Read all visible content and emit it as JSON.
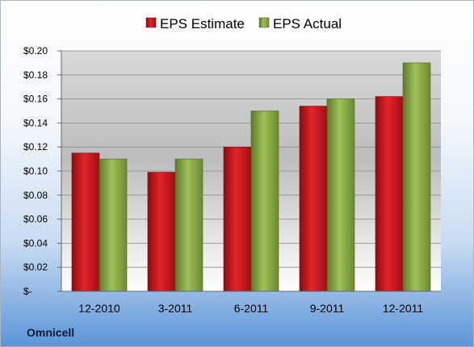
{
  "company": "Omnicell",
  "colors": {
    "estimate": "#d0141c",
    "actual": "#8fb04a"
  },
  "chart_data": {
    "type": "bar",
    "title": "",
    "xlabel": "",
    "ylabel": "",
    "categories": [
      "12-2010",
      "3-2011",
      "6-2011",
      "9-2011",
      "12-2011"
    ],
    "series": [
      {
        "name": "EPS Estimate",
        "values": [
          0.115,
          0.099,
          0.12,
          0.154,
          0.162
        ]
      },
      {
        "name": "EPS Actual",
        "values": [
          0.11,
          0.11,
          0.15,
          0.16,
          0.19
        ]
      }
    ],
    "ylim": [
      0,
      0.2
    ],
    "yticks": [
      0,
      0.02,
      0.04,
      0.06,
      0.08,
      0.1,
      0.12,
      0.14,
      0.16,
      0.18,
      0.2
    ],
    "ytick_labels": [
      "$-",
      "$0.02",
      "$0.04",
      "$0.06",
      "$0.08",
      "$0.10",
      "$0.12",
      "$0.14",
      "$0.16",
      "$0.18",
      "$0.20"
    ],
    "grid": true,
    "legend": "top"
  }
}
